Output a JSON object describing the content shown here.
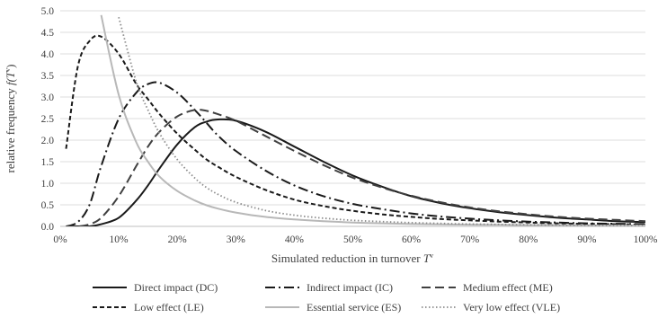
{
  "chart_data": {
    "type": "line",
    "title": "",
    "xlabel": {
      "main": "Simulated reduction in turnover ",
      "var": "T",
      "sup": "v"
    },
    "ylabel": {
      "main": "relative frequency  ",
      "var": "f(T",
      "sup": "v",
      "close": ")"
    },
    "xlim": [
      0,
      1
    ],
    "ylim": [
      0,
      5
    ],
    "x_ticks": [
      0,
      0.1,
      0.2,
      0.3,
      0.4,
      0.5,
      0.6,
      0.7,
      0.8,
      0.9,
      1.0
    ],
    "x_tick_labels": [
      "0%",
      "10%",
      "20%",
      "30%",
      "40%",
      "50%",
      "60%",
      "70%",
      "80%",
      "90%",
      "100%"
    ],
    "y_ticks": [
      0,
      0.5,
      1,
      1.5,
      2,
      2.5,
      3,
      3.5,
      4,
      4.5,
      5
    ],
    "y_tick_labels": [
      "0.0",
      "0.5",
      "1.0",
      "1.5",
      "2.0",
      "2.5",
      "3.0",
      "3.5",
      "4.0",
      "4.5",
      "5.0"
    ],
    "grid": "horizontal",
    "legend_position": "bottom",
    "x": [
      0.01,
      0.03,
      0.05,
      0.07,
      0.1,
      0.13,
      0.15,
      0.17,
      0.2,
      0.23,
      0.25,
      0.27,
      0.3,
      0.35,
      0.4,
      0.45,
      0.5,
      0.55,
      0.6,
      0.65,
      0.7,
      0.75,
      0.8,
      0.85,
      0.9,
      0.95,
      1.0
    ],
    "series": [
      {
        "name": "Direct impact (DC)",
        "values": [
          0.0,
          0.0,
          0.0,
          0.05,
          0.2,
          0.6,
          0.95,
          1.35,
          1.9,
          2.3,
          2.43,
          2.48,
          2.45,
          2.2,
          1.85,
          1.5,
          1.18,
          0.92,
          0.7,
          0.54,
          0.42,
          0.33,
          0.26,
          0.2,
          0.16,
          0.12,
          0.1
        ],
        "color": "#1a1a1a",
        "dash": "solid"
      },
      {
        "name": "Indirect impact (IC)",
        "values": [
          0.0,
          0.1,
          0.5,
          1.4,
          2.5,
          3.1,
          3.3,
          3.33,
          3.1,
          2.7,
          2.4,
          2.1,
          1.75,
          1.3,
          0.95,
          0.7,
          0.52,
          0.4,
          0.3,
          0.23,
          0.18,
          0.14,
          0.11,
          0.09,
          0.07,
          0.06,
          0.05
        ],
        "color": "#1a1a1a",
        "dash": "dashdot"
      },
      {
        "name": "Medium effect (ME)",
        "values": [
          0.0,
          0.0,
          0.05,
          0.2,
          0.7,
          1.4,
          1.85,
          2.2,
          2.55,
          2.7,
          2.68,
          2.6,
          2.45,
          2.1,
          1.75,
          1.42,
          1.13,
          0.9,
          0.71,
          0.56,
          0.44,
          0.35,
          0.28,
          0.22,
          0.18,
          0.15,
          0.12
        ],
        "color": "#404040",
        "dash": "longdash"
      },
      {
        "name": "Low effect (LE)",
        "values": [
          1.8,
          3.7,
          4.3,
          4.4,
          4.0,
          3.3,
          2.95,
          2.6,
          2.15,
          1.78,
          1.55,
          1.38,
          1.15,
          0.85,
          0.62,
          0.47,
          0.36,
          0.28,
          0.22,
          0.17,
          0.14,
          0.11,
          0.09,
          0.07,
          0.06,
          0.05,
          0.04
        ],
        "color": "#1a1a1a",
        "dash": "shortdash"
      },
      {
        "name": "Essential service (ES)",
        "values": [
          null,
          null,
          null,
          4.9,
          3.05,
          1.95,
          1.5,
          1.15,
          0.82,
          0.6,
          0.49,
          0.41,
          0.32,
          0.22,
          0.16,
          0.12,
          0.09,
          0.07,
          0.055,
          0.045,
          0.04,
          0.035,
          0.03,
          0.025,
          0.02,
          0.02,
          0.02
        ],
        "color": "#b8b8b8",
        "dash": "solid"
      },
      {
        "name": "Very low effect (VLE)",
        "values": [
          null,
          null,
          null,
          null,
          4.85,
          3.35,
          2.7,
          2.15,
          1.55,
          1.12,
          0.9,
          0.74,
          0.56,
          0.37,
          0.26,
          0.19,
          0.14,
          0.11,
          0.085,
          0.068,
          0.055,
          0.045,
          0.037,
          0.03,
          0.025,
          0.02,
          0.018
        ],
        "color": "#8c8c8c",
        "dash": "dotted"
      }
    ]
  }
}
